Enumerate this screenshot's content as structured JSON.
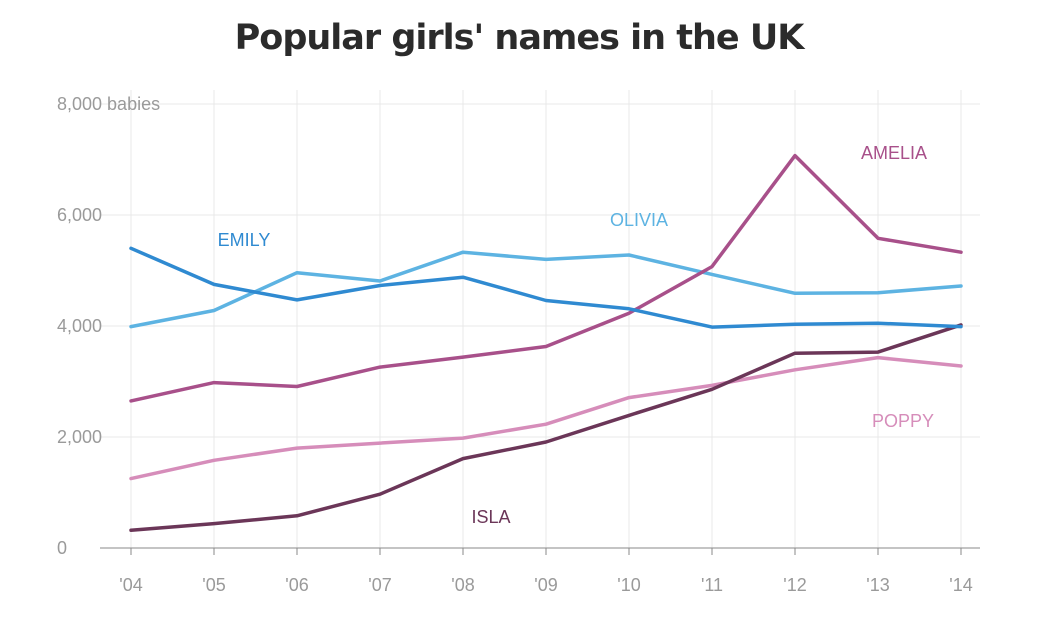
{
  "chart_data": {
    "type": "line",
    "title": "Popular girls' names in the UK",
    "xlabel": "",
    "ylabel": "",
    "categories": [
      "'04",
      "'05",
      "'06",
      "'07",
      "'08",
      "'09",
      "'10",
      "'11",
      "'12",
      "'13",
      "'14"
    ],
    "ylim": [
      0,
      8000
    ],
    "y_ticks": [
      0,
      2000,
      4000,
      6000,
      8000
    ],
    "y_tick_labels": [
      "0",
      "2,000",
      "4,000",
      "6,000",
      "8,000 babies"
    ],
    "grid": true,
    "legend": "inline labels",
    "series": [
      {
        "name": "EMILY",
        "color": "#2f8ad1",
        "values": [
          5400,
          4750,
          4470,
          4730,
          4880,
          4460,
          4310,
          3980,
          4030,
          4050,
          3990
        ]
      },
      {
        "name": "OLIVIA",
        "color": "#5db3e2",
        "values": [
          3990,
          4280,
          4960,
          4810,
          5330,
          5200,
          5280,
          4930,
          4590,
          4600,
          4720
        ]
      },
      {
        "name": "AMELIA",
        "color": "#a8508a",
        "values": [
          2650,
          2980,
          2910,
          3260,
          3440,
          3630,
          4230,
          5070,
          7070,
          5580,
          5330
        ]
      },
      {
        "name": "POPPY",
        "color": "#d68dba",
        "values": [
          1250,
          1580,
          1800,
          1890,
          1980,
          2230,
          2710,
          2930,
          3210,
          3430,
          3280
        ]
      },
      {
        "name": "ISLA",
        "color": "#6b3658",
        "values": [
          320,
          440,
          580,
          970,
          1610,
          1910,
          2390,
          2860,
          3510,
          3530,
          4020
        ]
      }
    ]
  }
}
